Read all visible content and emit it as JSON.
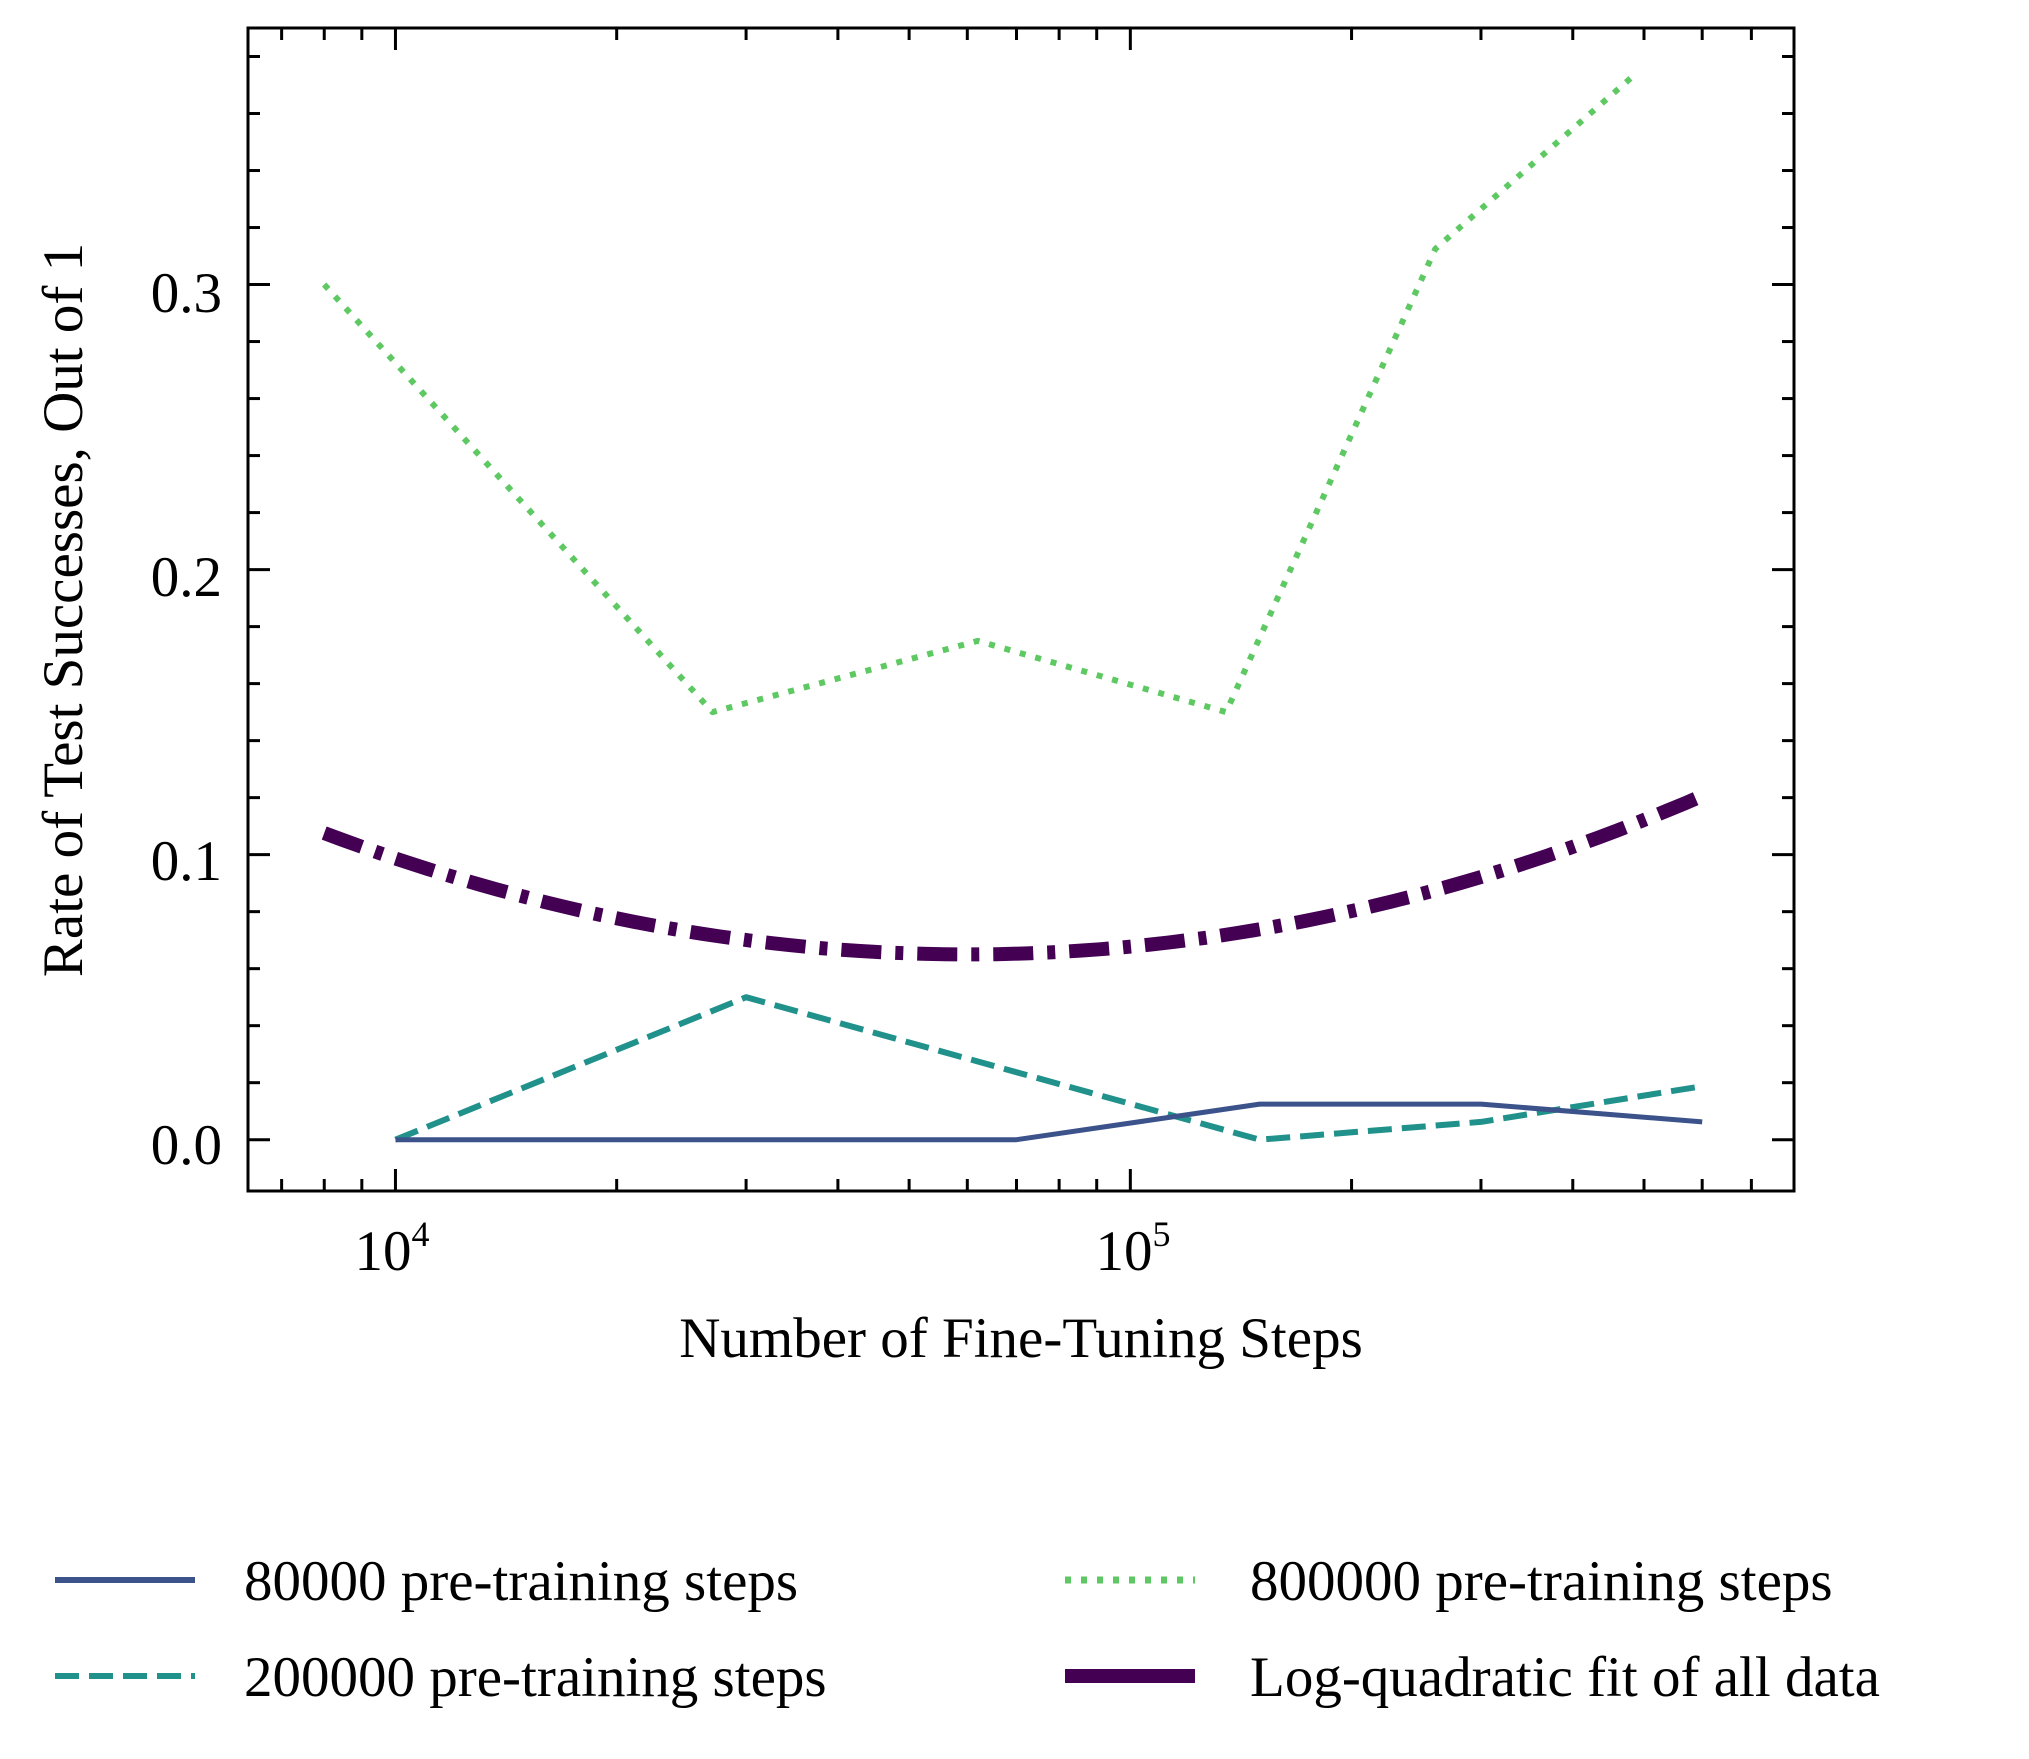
{
  "chart_data": {
    "type": "line",
    "title": "",
    "xlabel": "Number of Fine-Tuning Steps",
    "ylabel": "Rate of Test Successes, Out of 1",
    "xscale": "log",
    "xlim": [
      6300,
      800000
    ],
    "ylim": [
      -0.018,
      0.39
    ],
    "grid": false,
    "legend_position": "below-plot",
    "x_ticks": [
      {
        "value": 10000,
        "base": "10",
        "exp": "4"
      },
      {
        "value": 100000,
        "base": "10",
        "exp": "5"
      }
    ],
    "y_ticks": [
      {
        "value": 0.0,
        "label": "0.0"
      },
      {
        "value": 0.1,
        "label": "0.1"
      },
      {
        "value": 0.2,
        "label": "0.2"
      },
      {
        "value": 0.3,
        "label": "0.3"
      }
    ],
    "series": [
      {
        "name": "80000 pre-training steps",
        "style": "solid",
        "color": "#3b528b",
        "points": [
          [
            10000,
            0.0
          ],
          [
            70000,
            0.0
          ],
          [
            150000,
            0.0125
          ],
          [
            300000,
            0.0125
          ],
          [
            600000,
            0.00625
          ]
        ]
      },
      {
        "name": "200000 pre-training steps",
        "style": "dashed",
        "color": "#21918c",
        "points": [
          [
            10000,
            0.0
          ],
          [
            30000,
            0.05
          ],
          [
            150000,
            0.0
          ],
          [
            300000,
            0.00625
          ],
          [
            600000,
            0.01875
          ]
        ]
      },
      {
        "name": "800000 pre-training steps",
        "style": "dotted",
        "color": "#5ec962",
        "points": [
          [
            8000,
            0.3
          ],
          [
            27000,
            0.15
          ],
          [
            62000,
            0.175
          ],
          [
            135000,
            0.15
          ],
          [
            260000,
            0.3125
          ],
          [
            480000,
            0.3725
          ]
        ]
      },
      {
        "name": "Log-quadratic fit of all data",
        "style": "dashdot",
        "color": "#440154",
        "fit": {
          "type": "log-quadratic",
          "x_min": 8000,
          "x_max": 600000,
          "vertex_x": 60000,
          "vertex_y": 0.065,
          "curvature": 0.0556
        }
      }
    ]
  }
}
